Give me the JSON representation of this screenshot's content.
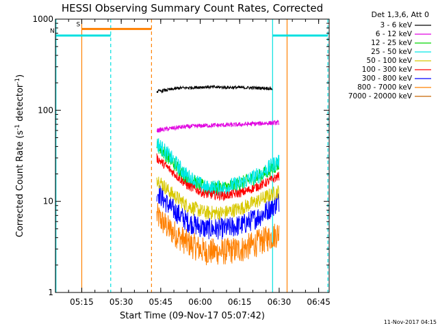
{
  "chart_data": {
    "type": "line",
    "title": "HESSI Observing Summary Count Rates, Corrected",
    "xlabel": "Start Time (09-Nov-17 05:07:42)",
    "ylabel_main": "Corrected Count Rate (s",
    "ylabel_sup1": "-1",
    "ylabel_mid": " detector",
    "ylabel_sup2": "-1",
    "ylabel_end": ")",
    "y_scale": "log",
    "ylim": [
      1,
      1000
    ],
    "y_ticks": [
      {
        "value": 1,
        "label": "1"
      },
      {
        "value": 10,
        "label": "10"
      },
      {
        "value": 100,
        "label": "100"
      },
      {
        "value": 1000,
        "label": "1000"
      }
    ],
    "xlim_minutes": [
      305.0,
      409.0
    ],
    "x_ticks": [
      {
        "minute": 315,
        "label": "05:15"
      },
      {
        "minute": 330,
        "label": "05:30"
      },
      {
        "minute": 345,
        "label": "05:45"
      },
      {
        "minute": 360,
        "label": "06:00"
      },
      {
        "minute": 375,
        "label": "06:15"
      },
      {
        "minute": 390,
        "label": "06:30"
      },
      {
        "minute": 405,
        "label": "06:45"
      }
    ],
    "legend_title": "Det 1,3,6, Att 0",
    "legend_position": "right, outside plot",
    "series": [
      {
        "name": "3 - 6 keV",
        "color": "#000000",
        "keypoints": [
          [
            343.5,
            160
          ],
          [
            352,
            175
          ],
          [
            362,
            180
          ],
          [
            372,
            178
          ],
          [
            385,
            175
          ],
          [
            387.5,
            172
          ]
        ],
        "noise": 0.018
      },
      {
        "name": "6 - 12 keV",
        "color": "#e000e0",
        "keypoints": [
          [
            343.5,
            60
          ],
          [
            352,
            65
          ],
          [
            362,
            68
          ],
          [
            372,
            69
          ],
          [
            385,
            72
          ],
          [
            390,
            73
          ]
        ],
        "noise": 0.025
      },
      {
        "name": "12 - 25 keV",
        "color": "#00d800",
        "keypoints": [
          [
            343.5,
            42
          ],
          [
            348,
            30
          ],
          [
            355,
            18
          ],
          [
            362,
            14
          ],
          [
            369,
            14
          ],
          [
            376,
            16
          ],
          [
            383,
            19
          ],
          [
            390,
            26
          ]
        ],
        "noise": 0.08
      },
      {
        "name": "25 - 50 keV",
        "color": "#00e8e8",
        "keypoints": [
          [
            343.5,
            44
          ],
          [
            348,
            32
          ],
          [
            355,
            19
          ],
          [
            362,
            14
          ],
          [
            369,
            14
          ],
          [
            376,
            16
          ],
          [
            383,
            20
          ],
          [
            390,
            28
          ]
        ],
        "noise": 0.09
      },
      {
        "name": "50 - 100 keV",
        "color": "#d8c800",
        "keypoints": [
          [
            343.5,
            18
          ],
          [
            348,
            13
          ],
          [
            355,
            9
          ],
          [
            362,
            7.5
          ],
          [
            369,
            7.5
          ],
          [
            376,
            8.5
          ],
          [
            383,
            10.5
          ],
          [
            390,
            13
          ]
        ],
        "noise": 0.08
      },
      {
        "name": "100 - 300 keV",
        "color": "#ff0000",
        "keypoints": [
          [
            343.5,
            30
          ],
          [
            348,
            23
          ],
          [
            355,
            15
          ],
          [
            362,
            12
          ],
          [
            369,
            11.5
          ],
          [
            376,
            12.5
          ],
          [
            383,
            15
          ],
          [
            390,
            19
          ]
        ],
        "noise": 0.05
      },
      {
        "name": "300 - 800 keV",
        "color": "#0000ff",
        "keypoints": [
          [
            343.5,
            13
          ],
          [
            348,
            9
          ],
          [
            355,
            6
          ],
          [
            362,
            5
          ],
          [
            369,
            5
          ],
          [
            376,
            5.5
          ],
          [
            383,
            7
          ],
          [
            390,
            10
          ]
        ],
        "noise": 0.12
      },
      {
        "name": "800 - 7000 keV",
        "color": "#ff8000",
        "keypoints": [
          [
            343.5,
            7
          ],
          [
            348,
            5
          ],
          [
            355,
            3.5
          ],
          [
            362,
            2.8
          ],
          [
            369,
            2.8
          ],
          [
            376,
            3
          ],
          [
            383,
            3.6
          ],
          [
            390,
            4.5
          ]
        ],
        "noise": 0.15
      },
      {
        "name": "7000 - 20000 keV",
        "color": "#c86400",
        "keypoints": [],
        "noise": 0
      }
    ],
    "flags": [
      {
        "label": "S",
        "color": "#ff8000",
        "start": 315,
        "end": 341.5,
        "level": 780
      },
      {
        "label": "N",
        "color": "#00e0e0",
        "start": 305,
        "end": 326,
        "level": 660
      },
      {
        "label": "",
        "color": "#00e0e0",
        "start": 387.5,
        "end": 408.5,
        "level": 660
      }
    ],
    "vertical_lines": [
      {
        "minute": 305.2,
        "color": "#00e0e0",
        "style": "solid"
      },
      {
        "minute": 315,
        "color": "#ff8000",
        "style": "solid"
      },
      {
        "minute": 326,
        "color": "#00e0e0",
        "style": "dashed"
      },
      {
        "minute": 341.5,
        "color": "#ff8000",
        "style": "dashed"
      },
      {
        "minute": 387.5,
        "color": "#00e0e0",
        "style": "solid"
      },
      {
        "minute": 393,
        "color": "#ff8000",
        "style": "solid"
      },
      {
        "minute": 408.5,
        "color": "#00e0e0",
        "style": "dashed"
      }
    ],
    "footer_stamp": "11-Nov-2017 04:15"
  }
}
